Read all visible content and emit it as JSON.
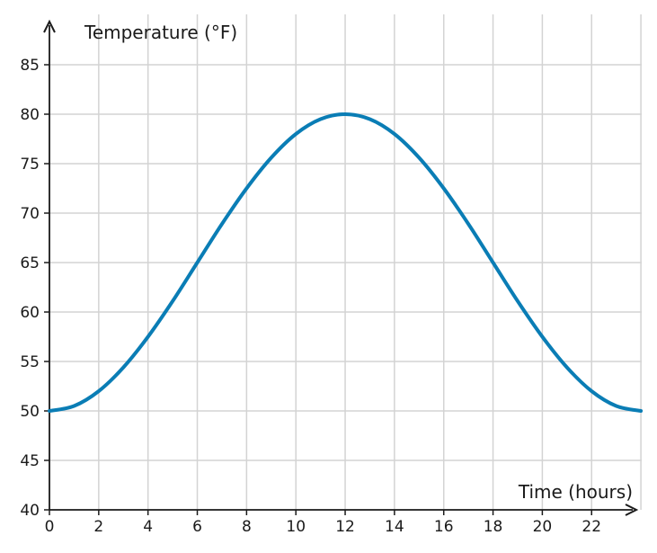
{
  "chart_data": {
    "type": "line",
    "title": "",
    "xlabel": "Time (hours)",
    "ylabel": "Temperature (°F)",
    "xlim": [
      0,
      24
    ],
    "ylim": [
      40,
      90
    ],
    "x_ticks": [
      0,
      2,
      4,
      6,
      8,
      10,
      12,
      14,
      16,
      18,
      20,
      22
    ],
    "y_ticks": [
      40,
      45,
      50,
      55,
      60,
      65,
      70,
      75,
      80,
      85
    ],
    "grid": true,
    "legend": "none",
    "series": [
      {
        "color": "#0a7db5",
        "x": [
          0,
          1,
          2,
          3,
          4,
          5,
          6,
          7,
          8,
          9,
          10,
          11,
          12,
          13,
          14,
          15,
          16,
          17,
          18,
          19,
          20,
          21,
          22,
          23,
          24
        ],
        "y": [
          50.0,
          50.5,
          52.0,
          54.4,
          57.5,
          61.1,
          65.0,
          68.9,
          72.5,
          75.6,
          78.0,
          79.5,
          80.0,
          79.5,
          78.0,
          75.6,
          72.5,
          68.9,
          65.0,
          61.1,
          57.5,
          54.4,
          52.0,
          50.5,
          50.0
        ]
      }
    ]
  },
  "colors": {
    "line": "#0a7db5",
    "grid": "#d3d3d3",
    "axis": "#1a1a1a"
  }
}
